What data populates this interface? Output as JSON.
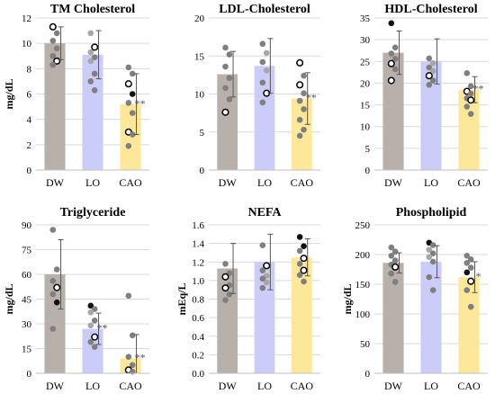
{
  "chart_data": [
    {
      "type": "bar",
      "title": "TM Cholesterol",
      "ylabel": "mg/dL",
      "categories": [
        "DW",
        "LO",
        "CAO"
      ],
      "ylim": [
        0,
        12
      ],
      "yticks": [
        0,
        2,
        4,
        6,
        8,
        10,
        12
      ],
      "values": [
        10.0,
        9.1,
        5.2
      ],
      "errors": [
        1.3,
        1.9,
        2.4
      ],
      "annotations": [
        "",
        "",
        "**"
      ],
      "points": [
        [
          {
            "v": 11.3,
            "s": "open"
          },
          {
            "v": 10.8,
            "s": "grey"
          },
          {
            "v": 10.2,
            "s": "grey"
          },
          {
            "v": 9.6,
            "s": "grey"
          },
          {
            "v": 9.0,
            "s": "grey"
          },
          {
            "v": 8.6,
            "s": "open"
          },
          {
            "v": 8.3,
            "s": "grey"
          }
        ],
        [
          {
            "v": 10.8,
            "s": "light"
          },
          {
            "v": 9.7,
            "s": "open"
          },
          {
            "v": 9.3,
            "s": "light"
          },
          {
            "v": 8.9,
            "s": "grey"
          },
          {
            "v": 8.6,
            "s": "light"
          },
          {
            "v": 7.6,
            "s": "grey"
          },
          {
            "v": 7.0,
            "s": "grey"
          },
          {
            "v": 6.3,
            "s": "grey"
          }
        ],
        [
          {
            "v": 8.1,
            "s": "grey"
          },
          {
            "v": 7.6,
            "s": "grey"
          },
          {
            "v": 6.8,
            "s": "open"
          },
          {
            "v": 6.0,
            "s": "black"
          },
          {
            "v": 5.3,
            "s": "grey"
          },
          {
            "v": 4.5,
            "s": "grey"
          },
          {
            "v": 3.0,
            "s": "open"
          },
          {
            "v": 2.8,
            "s": "grey"
          },
          {
            "v": 1.9,
            "s": "grey"
          }
        ]
      ]
    },
    {
      "type": "bar",
      "title": "LDL-Cholesterol",
      "ylabel": "",
      "categories": [
        "DW",
        "LO",
        "CAO"
      ],
      "ylim": [
        0,
        20
      ],
      "yticks": [
        0,
        5,
        10,
        15,
        20
      ],
      "values": [
        12.6,
        13.7,
        9.4
      ],
      "errors": [
        3.0,
        3.6,
        3.4
      ],
      "annotations": [
        "",
        "",
        "**"
      ],
      "points": [
        [
          {
            "v": 16.1,
            "s": "grey"
          },
          {
            "v": 15.2,
            "s": "grey"
          },
          {
            "v": 13.6,
            "s": "grey"
          },
          {
            "v": 12.1,
            "s": "grey"
          },
          {
            "v": 10.8,
            "s": "grey"
          },
          {
            "v": 9.3,
            "s": "grey"
          },
          {
            "v": 7.6,
            "s": "open"
          }
        ],
        [
          {
            "v": 16.6,
            "s": "grey"
          },
          {
            "v": 15.4,
            "s": "light"
          },
          {
            "v": 14.2,
            "s": "grey"
          },
          {
            "v": 13.1,
            "s": "light"
          },
          {
            "v": 11.5,
            "s": "grey"
          },
          {
            "v": 10.1,
            "s": "open"
          },
          {
            "v": 8.9,
            "s": "grey"
          }
        ],
        [
          {
            "v": 14.1,
            "s": "open"
          },
          {
            "v": 12.4,
            "s": "grey"
          },
          {
            "v": 11.2,
            "s": "open"
          },
          {
            "v": 10.1,
            "s": "grey"
          },
          {
            "v": 9.1,
            "s": "grey"
          },
          {
            "v": 8.0,
            "s": "grey"
          },
          {
            "v": 6.6,
            "s": "grey"
          },
          {
            "v": 5.3,
            "s": "grey"
          },
          {
            "v": 4.5,
            "s": "grey"
          }
        ]
      ]
    },
    {
      "type": "bar",
      "title": "HDL-Cholesterol",
      "ylabel": "",
      "categories": [
        "DW",
        "LO",
        "CAO"
      ],
      "ylim": [
        0,
        35
      ],
      "yticks": [
        0,
        5,
        10,
        15,
        20,
        25,
        30,
        35
      ],
      "values": [
        27.0,
        25.0,
        18.5
      ],
      "errors": [
        5.0,
        5.2,
        3.0
      ],
      "annotations": [
        "",
        "",
        "**"
      ],
      "points": [
        [
          {
            "v": 33.8,
            "s": "black"
          },
          {
            "v": 28.2,
            "s": "grey"
          },
          {
            "v": 26.8,
            "s": "grey"
          },
          {
            "v": 25.6,
            "s": "grey"
          },
          {
            "v": 24.5,
            "s": "open"
          },
          {
            "v": 23.2,
            "s": "grey"
          },
          {
            "v": 20.6,
            "s": "open"
          }
        ],
        [
          {
            "v": 25.7,
            "s": "grey"
          },
          {
            "v": 24.6,
            "s": "light"
          },
          {
            "v": 23.6,
            "s": "grey"
          },
          {
            "v": 22.8,
            "s": "light"
          },
          {
            "v": 21.7,
            "s": "open"
          },
          {
            "v": 20.6,
            "s": "grey"
          },
          {
            "v": 19.6,
            "s": "grey"
          }
        ],
        [
          {
            "v": 22.3,
            "s": "grey"
          },
          {
            "v": 19.3,
            "s": "grey"
          },
          {
            "v": 18.1,
            "s": "open"
          },
          {
            "v": 17.6,
            "s": "grey"
          },
          {
            "v": 16.5,
            "s": "grey"
          },
          {
            "v": 16.1,
            "s": "open"
          },
          {
            "v": 14.6,
            "s": "grey"
          },
          {
            "v": 12.9,
            "s": "grey"
          }
        ]
      ]
    },
    {
      "type": "bar",
      "title": "Triglyceride",
      "ylabel": "mg/dL",
      "categories": [
        "DW",
        "LO",
        "CAO"
      ],
      "ylim": [
        0,
        90
      ],
      "yticks": [
        0,
        15,
        30,
        45,
        60,
        75,
        90
      ],
      "values": [
        60.0,
        27.0,
        9.0
      ],
      "errors": [
        21.0,
        9.5,
        14.5
      ],
      "annotations": [
        "",
        "**",
        "**"
      ],
      "points": [
        [
          {
            "v": 87.0,
            "s": "grey"
          },
          {
            "v": 63.0,
            "s": "grey"
          },
          {
            "v": 56.0,
            "s": "grey"
          },
          {
            "v": 52.0,
            "s": "open"
          },
          {
            "v": 48.0,
            "s": "grey"
          },
          {
            "v": 43.0,
            "s": "black"
          },
          {
            "v": 27.0,
            "s": "grey"
          }
        ],
        [
          {
            "v": 41.0,
            "s": "black"
          },
          {
            "v": 39.0,
            "s": "grey"
          },
          {
            "v": 37.0,
            "s": "light"
          },
          {
            "v": 32.0,
            "s": "grey"
          },
          {
            "v": 29.0,
            "s": "light"
          },
          {
            "v": 22.0,
            "s": "open"
          },
          {
            "v": 19.0,
            "s": "grey"
          },
          {
            "v": 16.0,
            "s": "grey"
          }
        ],
        [
          {
            "v": 47.0,
            "s": "grey"
          },
          {
            "v": 23.0,
            "s": "grey"
          },
          {
            "v": 10.0,
            "s": "grey"
          },
          {
            "v": 5.0,
            "s": "grey"
          },
          {
            "v": 2.0,
            "s": "open"
          },
          {
            "v": 1.0,
            "s": "grey"
          }
        ]
      ]
    },
    {
      "type": "bar",
      "title": "NEFA",
      "ylabel": "mEq/L",
      "categories": [
        "DW",
        "LO",
        "CAO"
      ],
      "ylim": [
        0,
        1.6
      ],
      "yticks": [
        0.0,
        0.2,
        0.4,
        0.6,
        0.8,
        1.0,
        1.2,
        1.4,
        1.6
      ],
      "tickDecimals": 1,
      "values": [
        1.13,
        1.2,
        1.25
      ],
      "errors": [
        0.27,
        0.3,
        0.2
      ],
      "annotations": [
        "",
        "",
        ""
      ],
      "points": [
        [
          {
            "v": 1.18,
            "s": "grey"
          },
          {
            "v": 1.08,
            "s": "grey"
          },
          {
            "v": 1.04,
            "s": "open"
          },
          {
            "v": 0.95,
            "s": "grey"
          },
          {
            "v": 0.92,
            "s": "open"
          },
          {
            "v": 0.85,
            "s": "grey"
          },
          {
            "v": 0.79,
            "s": "grey"
          }
        ],
        [
          {
            "v": 1.38,
            "s": "grey"
          },
          {
            "v": 1.16,
            "s": "open"
          },
          {
            "v": 1.11,
            "s": "grey"
          },
          {
            "v": 1.05,
            "s": "light"
          },
          {
            "v": 1.02,
            "s": "grey"
          },
          {
            "v": 0.98,
            "s": "light"
          },
          {
            "v": 0.92,
            "s": "grey"
          }
        ],
        [
          {
            "v": 1.47,
            "s": "black"
          },
          {
            "v": 1.37,
            "s": "black"
          },
          {
            "v": 1.32,
            "s": "grey"
          },
          {
            "v": 1.24,
            "s": "open"
          },
          {
            "v": 1.18,
            "s": "grey"
          },
          {
            "v": 1.11,
            "s": "open"
          },
          {
            "v": 1.06,
            "s": "grey"
          },
          {
            "v": 0.99,
            "s": "grey"
          }
        ]
      ]
    },
    {
      "type": "bar",
      "title": "Phospholipid",
      "ylabel": "mg/dL",
      "categories": [
        "DW",
        "LO",
        "CAO"
      ],
      "ylim": [
        0,
        250
      ],
      "yticks": [
        0,
        50,
        100,
        150,
        200,
        250
      ],
      "values": [
        186.0,
        188.0,
        162.0
      ],
      "errors": [
        17.0,
        27.0,
        26.0
      ],
      "annotations": [
        "",
        "",
        "*"
      ],
      "points": [
        [
          {
            "v": 212.0,
            "s": "grey"
          },
          {
            "v": 205.0,
            "s": "grey"
          },
          {
            "v": 198.0,
            "s": "grey"
          },
          {
            "v": 190.0,
            "s": "grey"
          },
          {
            "v": 183.0,
            "s": "grey"
          },
          {
            "v": 179.0,
            "s": "open"
          },
          {
            "v": 168.0,
            "s": "grey"
          },
          {
            "v": 154.0,
            "s": "grey"
          }
        ],
        [
          {
            "v": 220.0,
            "s": "black"
          },
          {
            "v": 216.0,
            "s": "grey"
          },
          {
            "v": 208.0,
            "s": "light"
          },
          {
            "v": 202.0,
            "s": "grey"
          },
          {
            "v": 196.0,
            "s": "light"
          },
          {
            "v": 188.0,
            "s": "grey"
          },
          {
            "v": 162.0,
            "s": "grey"
          },
          {
            "v": 140.0,
            "s": "grey"
          }
        ],
        [
          {
            "v": 198.0,
            "s": "grey"
          },
          {
            "v": 192.0,
            "s": "grey"
          },
          {
            "v": 186.0,
            "s": "grey"
          },
          {
            "v": 178.0,
            "s": "grey"
          },
          {
            "v": 170.0,
            "s": "black"
          },
          {
            "v": 155.0,
            "s": "open"
          },
          {
            "v": 140.0,
            "s": "grey"
          },
          {
            "v": 112.0,
            "s": "grey"
          }
        ]
      ]
    }
  ],
  "colors": {
    "bars": [
      "#b8b0ab",
      "#ccccf8",
      "#fde89a"
    ],
    "dot_grey": "#7f7f7f",
    "dot_light": "#a7a7a7",
    "dot_black": "#111111",
    "grid": "#d9d9d9",
    "error_bar": "#555555"
  }
}
